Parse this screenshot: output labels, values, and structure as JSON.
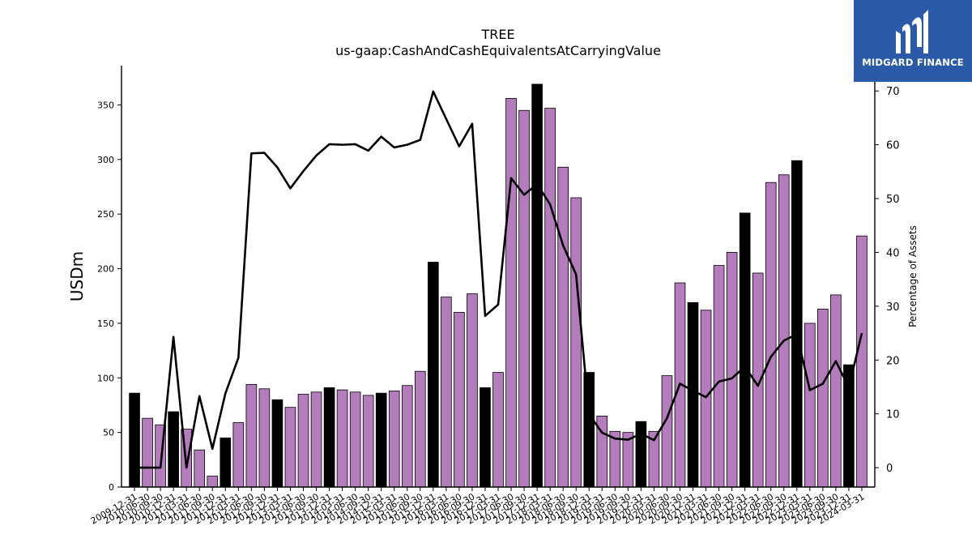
{
  "chart_data": {
    "type": "bar",
    "title": "TREE",
    "subtitle": "us-gaap:CashAndCashEquivalentsAtCarryingValue",
    "ylabel": "USDm",
    "y2label": "Percentage of Assets",
    "ylim": [
      0,
      386
    ],
    "y2lim": [
      -3.6,
      74.7
    ],
    "yticks": [
      0,
      50,
      100,
      150,
      200,
      250,
      300,
      350
    ],
    "y2ticks": [
      0,
      10,
      20,
      30,
      40,
      50,
      60,
      70
    ],
    "grid": false,
    "categories": [
      "2009-12-31",
      "2010-06-30",
      "2010-09-30",
      "2010-12-31",
      "2011-03-31",
      "2011-06-30",
      "2011-09-30",
      "2011-12-31",
      "2012-03-31",
      "2012-06-30",
      "2012-09-30",
      "2012-12-31",
      "2013-03-31",
      "2013-06-30",
      "2013-09-30",
      "2013-12-31",
      "2014-03-31",
      "2014-06-30",
      "2014-09-30",
      "2014-12-31",
      "2015-03-31",
      "2015-06-30",
      "2015-09-30",
      "2015-12-31",
      "2016-03-31",
      "2016-06-30",
      "2016-09-30",
      "2016-12-31",
      "2017-03-31",
      "2017-06-30",
      "2017-09-30",
      "2017-12-31",
      "2018-03-31",
      "2018-06-30",
      "2018-09-30",
      "2018-12-31",
      "2019-03-31",
      "2019-06-30",
      "2019-09-30",
      "2019-12-31",
      "2020-03-31",
      "2020-06-30",
      "2020-09-30",
      "2020-12-31",
      "2021-03-31",
      "2021-06-30",
      "2021-09-30",
      "2021-12-31",
      "2022-03-31",
      "2022-06-30",
      "2022-09-30",
      "2022-12-31",
      "2023-03-31",
      "2023-06-30",
      "2023-09-30",
      "2023-12-31",
      "2024-03-31"
    ],
    "series": [
      {
        "values": [
          86,
          63,
          57,
          69,
          53,
          34,
          10,
          45,
          59,
          94,
          90,
          80,
          73,
          85,
          87,
          91,
          89,
          87,
          84,
          86,
          88,
          93,
          106,
          206,
          174,
          160,
          177,
          91,
          105,
          356,
          345,
          369,
          347,
          293,
          265,
          105,
          65,
          51,
          50,
          60,
          51,
          102,
          187,
          169,
          162,
          203,
          215,
          251,
          196,
          279,
          286,
          299,
          150,
          163,
          176,
          112,
          230
        ],
        "highlight": [
          true,
          false,
          false,
          true,
          false,
          false,
          false,
          true,
          false,
          false,
          false,
          true,
          false,
          false,
          false,
          true,
          false,
          false,
          false,
          true,
          false,
          false,
          false,
          true,
          false,
          false,
          false,
          true,
          false,
          false,
          false,
          true,
          false,
          false,
          false,
          true,
          false,
          false,
          false,
          true,
          false,
          false,
          false,
          true,
          false,
          false,
          false,
          true,
          false,
          false,
          false,
          true,
          false,
          false,
          false,
          true,
          false
        ],
        "color": "#b57cbd",
        "highlight_color": "#000000"
      },
      {
        "type": "line",
        "axis": "right",
        "color": "#000000",
        "values": [
          0,
          0,
          0,
          24.3,
          0,
          13.3,
          3.5,
          13.8,
          20.4,
          58.4,
          58.5,
          55.8,
          51.9,
          55.1,
          58.0,
          60.1,
          60.0,
          60.1,
          58.9,
          61.5,
          59.5,
          60.0,
          60.9,
          69.9,
          64.8,
          59.7,
          63.9,
          28.2,
          30.3,
          53.8,
          50.7,
          52.7,
          48.9,
          41.3,
          35.9,
          9.9,
          6.5,
          5.4,
          5.2,
          6.3,
          5.1,
          9.2,
          15.6,
          14.3,
          13.1,
          16.0,
          16.6,
          18.8,
          15.2,
          20.6,
          23.6,
          24.8,
          14.4,
          15.6,
          19.8,
          14.9,
          25.0
        ]
      }
    ]
  },
  "logo": {
    "text": "MIDGARD FINANCE",
    "background": "#2b5aa8"
  }
}
